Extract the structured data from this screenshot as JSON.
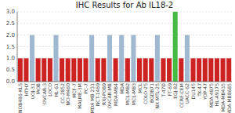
{
  "chart_data": {
    "type": "bar",
    "title": "IHC Results for Ab IL18-2",
    "categories": [
      "NOB486-KLS",
      "HTH7",
      "UOJ-31",
      "MOB",
      "OVCAR-3",
      "LOCO",
      "HL-61",
      "CC-2852",
      "NCI-H460",
      "MCF-7",
      "MALME-3M",
      "PC-7",
      "MDA MB 231",
      "NCT-1469",
      "RXJ-PO89",
      "OVCAR-MB",
      "MDA-MB4",
      "MDA",
      "MCL-MB2",
      "MCL-MB3",
      "MCL",
      "COLO-25",
      "BGDB71",
      "NX MTL-25",
      "T-47D",
      "FT-69",
      "EGJ-82",
      "CCRF-CEM",
      "UACC-62",
      "DU145",
      "TK-47",
      "YOP-47",
      "MDA-4875",
      "HL-A9175",
      "MDA-MB435",
      "MDA-MB8685"
    ],
    "values": [
      1,
      1,
      2,
      1,
      1,
      1,
      2,
      1,
      1,
      1,
      1,
      1,
      2,
      1,
      1,
      2,
      1,
      2,
      1,
      2,
      1,
      1,
      1,
      2,
      1,
      1,
      3,
      1,
      2,
      1,
      1,
      1,
      1,
      1,
      1,
      1
    ],
    "colors": [
      "#cc2222",
      "#cc2222",
      "#a0b8d0",
      "#cc2222",
      "#cc2222",
      "#cc2222",
      "#a0b8d0",
      "#cc2222",
      "#cc2222",
      "#cc2222",
      "#cc2222",
      "#cc2222",
      "#a0b8d0",
      "#cc2222",
      "#cc2222",
      "#a0b8d0",
      "#cc2222",
      "#a0b8d0",
      "#cc2222",
      "#a0b8d0",
      "#cc2222",
      "#cc2222",
      "#cc2222",
      "#a0b8d0",
      "#cc2222",
      "#cc2222",
      "#44bb44",
      "#cc2222",
      "#a0b8d0",
      "#cc2222",
      "#cc2222",
      "#cc2222",
      "#cc2222",
      "#cc2222",
      "#cc2222",
      "#cc2222"
    ],
    "ylim": [
      0,
      3.0
    ],
    "yticks": [
      {
        "value": 0,
        "label": "0.0"
      },
      0.5,
      {
        "value": 1,
        "label": "1.0"
      },
      1.5,
      {
        "value": 2,
        "label": "2.0"
      },
      2.5,
      {
        "value": 3,
        "label": "3.0"
      }
    ],
    "grid": true
  }
}
